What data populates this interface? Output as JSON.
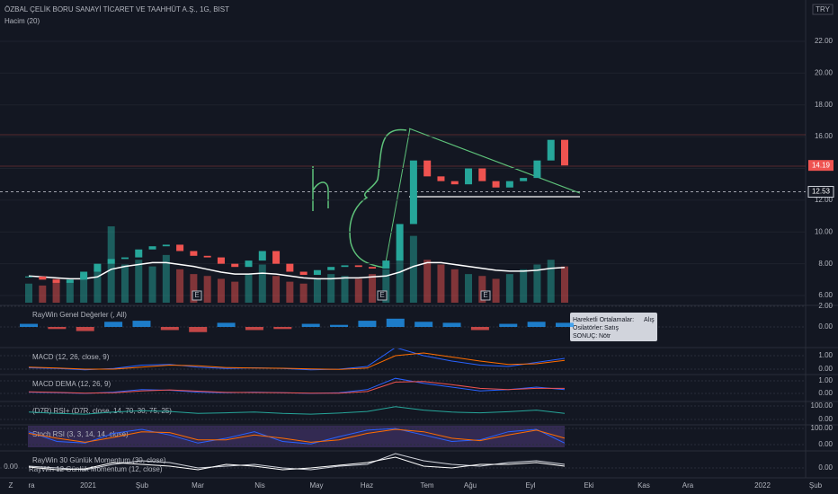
{
  "header": {
    "title": "ÖZBAL ÇELİK BORU SANAYİ TİCARET VE TAAHHÜT A.Ş., 1G, BIST",
    "volume_label": "Hacim (20)",
    "currency": "TRY"
  },
  "chart_data": [
    {
      "type": "candlestick",
      "up_color": "#26a69a",
      "down_color": "#ef5350",
      "closes": [
        7.2,
        7.0,
        6.8,
        7.0,
        7.5,
        8.0,
        8.3,
        8.4,
        8.9,
        9.1,
        9.2,
        8.8,
        8.5,
        8.4,
        8.0,
        7.8,
        8.2,
        8.8,
        8.0,
        7.5,
        7.3,
        7.6,
        7.8,
        7.9,
        7.8,
        7.7,
        8.2,
        10.5,
        14.5,
        13.5,
        13.2,
        13.0,
        14.0,
        13.2,
        12.8,
        13.2,
        13.4,
        14.5,
        15.8,
        14.19
      ],
      "volume": [
        20,
        18,
        25,
        22,
        30,
        35,
        80,
        40,
        45,
        38,
        50,
        35,
        30,
        28,
        25,
        22,
        30,
        40,
        28,
        22,
        20,
        25,
        30,
        28,
        25,
        30,
        35,
        55,
        70,
        45,
        40,
        35,
        30,
        28,
        25,
        30,
        35,
        40,
        45,
        38
      ],
      "volume_ma": [
        28,
        27,
        26,
        25,
        25,
        27,
        35,
        38,
        40,
        42,
        42,
        40,
        38,
        35,
        32,
        30,
        30,
        31,
        30,
        28,
        26,
        25,
        25,
        26,
        26,
        27,
        28,
        32,
        38,
        42,
        42,
        40,
        38,
        36,
        34,
        33,
        33,
        34,
        36,
        37
      ],
      "ylim": [
        5.55,
        24.6
      ],
      "yticks": [
        {
          "value": 6,
          "label": "6.00"
        },
        {
          "value": 8,
          "label": "8.00"
        },
        {
          "value": 10,
          "label": "10.00"
        },
        {
          "value": 12,
          "label": "12.00"
        },
        {
          "value": 14,
          "label": "14.00"
        },
        {
          "value": 16,
          "label": "16.00"
        },
        {
          "value": 18,
          "label": "18.00"
        },
        {
          "value": 20,
          "label": "20.00"
        },
        {
          "value": 22,
          "label": "22.00"
        }
      ],
      "price_markers": [
        14.19,
        12.53
      ],
      "events": [
        "E",
        "E",
        "E"
      ]
    },
    {
      "type": "histogram",
      "title": "RayWin Genel Değerler (, All)",
      "ylim": [
        -2,
        2
      ],
      "yticks": [
        {
          "value": 0,
          "label": "0.00"
        },
        {
          "value": 2,
          "label": "2.00"
        }
      ],
      "values": [
        0.3,
        -0.2,
        -0.4,
        0.5,
        0.6,
        -0.3,
        -0.5,
        0.4,
        -0.3,
        -0.2,
        0.3,
        0.2,
        0.6,
        0.8,
        0.5,
        0.4,
        -0.3,
        0.3,
        0.5,
        0.4
      ]
    },
    {
      "type": "line",
      "title": "MACD (12, 26, close, 9)",
      "ylim": [
        -0.33,
        1.53
      ],
      "yticks": [
        {
          "value": 0,
          "label": "0.00"
        },
        {
          "value": 1,
          "label": "1.00"
        }
      ],
      "series": [
        {
          "color": "#2962ff",
          "values": [
            0.1,
            0.05,
            -0.05,
            0.05,
            0.3,
            0.35,
            0.15,
            0.05,
            0.1,
            0.05,
            -0.05,
            0,
            0.2,
            1.6,
            1.0,
            0.6,
            0.3,
            0.2,
            0.5,
            0.8
          ]
        },
        {
          "color": "#ff6d00",
          "values": [
            0.15,
            0.08,
            0,
            0,
            0.15,
            0.3,
            0.25,
            0.12,
            0.08,
            0.07,
            0.02,
            -0.02,
            0.08,
            1.0,
            1.2,
            0.9,
            0.6,
            0.35,
            0.4,
            0.65
          ]
        }
      ]
    },
    {
      "type": "line",
      "title": "MACD DEMA (12, 26, 9)",
      "ylim": [
        -0.57,
        1.43
      ],
      "yticks": [
        {
          "value": 0,
          "label": "0.00"
        },
        {
          "value": 1,
          "label": "1.00"
        }
      ],
      "series": [
        {
          "color": "#2962ff",
          "values": [
            0.1,
            0.05,
            0,
            0.1,
            0.3,
            0.25,
            0.1,
            0.05,
            0.1,
            0.05,
            0,
            0.05,
            0.3,
            1.2,
            0.8,
            0.5,
            0.2,
            0.3,
            0.5,
            0.3
          ]
        },
        {
          "color": "#ef5350",
          "values": [
            0.12,
            0.08,
            0.02,
            0.05,
            0.2,
            0.28,
            0.18,
            0.08,
            0.07,
            0.06,
            0.02,
            0.02,
            0.15,
            0.9,
            0.95,
            0.7,
            0.4,
            0.3,
            0.4,
            0.4
          ]
        }
      ]
    },
    {
      "type": "line",
      "title": "(D7R) RSI+ (D7R, close, 14, 70, 30, 75, 25)",
      "ylim": [
        -33,
        127
      ],
      "yticks": [
        {
          "value": 0,
          "label": "0.00"
        },
        {
          "value": 100,
          "label": "100.00"
        }
      ],
      "series": [
        {
          "color": "#26a69a",
          "values": [
            55,
            45,
            40,
            55,
            65,
            60,
            45,
            50,
            55,
            45,
            40,
            48,
            60,
            95,
            70,
            55,
            50,
            58,
            70,
            45
          ]
        }
      ]
    },
    {
      "type": "line",
      "title": "Stoch RSI (3, 3, 14, 14, close)",
      "ylim": [
        -33,
        117
      ],
      "yticks": [
        {
          "value": 0,
          "label": "0.00"
        },
        {
          "value": 100,
          "label": "100.00"
        }
      ],
      "series": [
        {
          "color": "#2962ff",
          "values": [
            80,
            20,
            10,
            70,
            95,
            60,
            10,
            40,
            80,
            20,
            5,
            50,
            90,
            100,
            60,
            20,
            30,
            80,
            95,
            10
          ]
        },
        {
          "color": "#ff6d00",
          "values": [
            70,
            40,
            15,
            45,
            80,
            75,
            30,
            30,
            60,
            40,
            15,
            30,
            70,
            95,
            80,
            40,
            25,
            60,
            90,
            40
          ]
        }
      ]
    },
    {
      "type": "line",
      "title": "RayWin 30 Günlük Momentum (30, close)",
      "title2": "RayWin 12 Günlük Momentum (12, close)",
      "ylim": [
        -0.5,
        0.9
      ],
      "yticks": [
        {
          "value": 0,
          "label": "0.00"
        }
      ],
      "series": [
        {
          "color": "#d1d4dc",
          "values": [
            0.1,
            0,
            -0.1,
            0.2,
            0.4,
            0.3,
            0,
            0.1,
            0.2,
            0,
            -0.1,
            0.1,
            0.2,
            0.8,
            0.4,
            0.2,
            0.1,
            0.3,
            0.4,
            0.2
          ]
        },
        {
          "color": "#ffffff",
          "values": [
            0.05,
            -0.1,
            -0.05,
            0.3,
            0.2,
            0.1,
            -0.1,
            0.2,
            0.1,
            -0.1,
            0,
            0.15,
            0.3,
            0.6,
            0.1,
            0,
            0.2,
            0.2,
            0.3,
            0.1
          ]
        }
      ]
    }
  ],
  "left_scale": "0.00",
  "x_axis": {
    "labels": [
      "ra",
      "2021",
      "Şub",
      "Mar",
      "Nis",
      "May",
      "Haz",
      "Tem",
      "Ağu",
      "Eyl",
      "Eki",
      "Kas",
      "Ara",
      "2022",
      "Şub"
    ]
  },
  "timezone_button": "Z",
  "tooltip": {
    "rows": [
      [
        "Hareketli Ortalamalar:",
        "Alış"
      ],
      [
        "Osilatörler:",
        "Satış"
      ],
      [
        "SONUÇ:",
        "Nötr"
      ]
    ]
  }
}
